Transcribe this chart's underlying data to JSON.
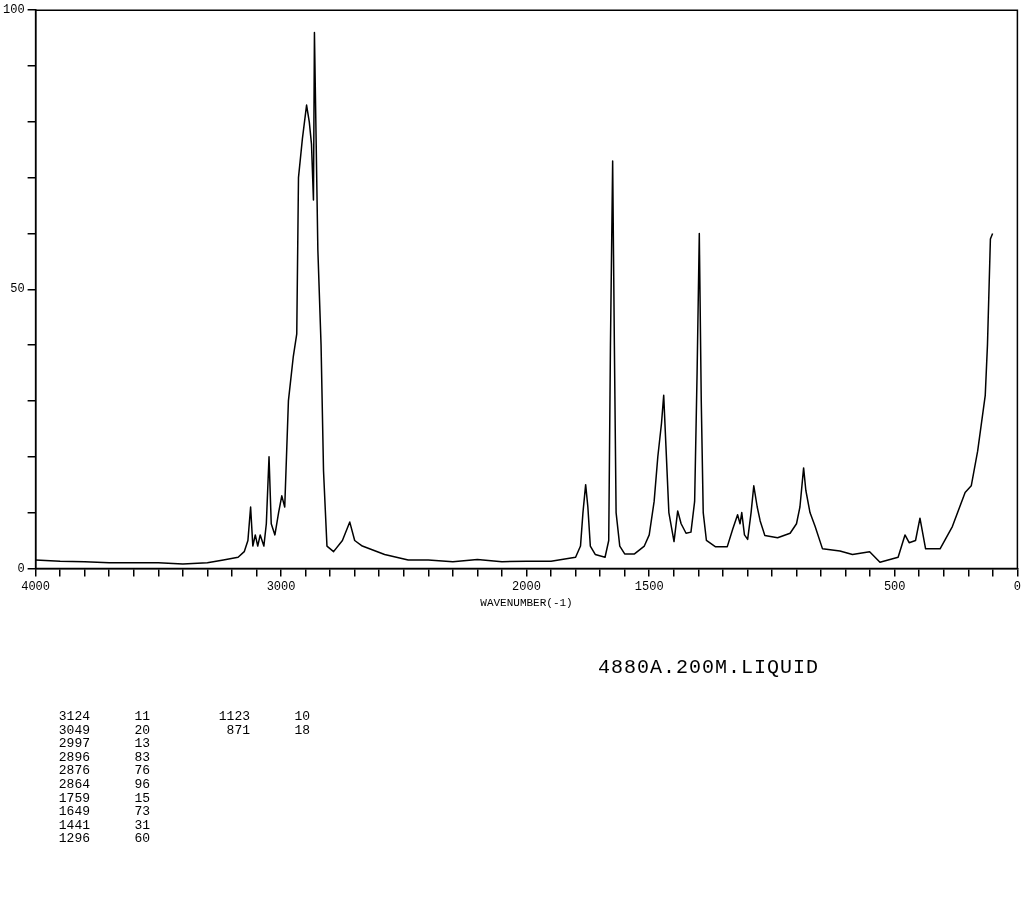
{
  "chart_data": {
    "type": "line",
    "xlabel": "WAVENUMBER(-1)",
    "x": [
      4000,
      3900,
      3800,
      3700,
      3600,
      3500,
      3400,
      3300,
      3235,
      3175,
      3150,
      3135,
      3124,
      3115,
      3105,
      3095,
      3085,
      3070,
      3060,
      3049,
      3040,
      3025,
      3010,
      2997,
      2985,
      2970,
      2950,
      2936,
      2929,
      2913,
      2896,
      2885,
      2876,
      2868,
      2864,
      2850,
      2837,
      2827,
      2813,
      2786,
      2750,
      2720,
      2700,
      2669,
      2578,
      2482,
      2400,
      2300,
      2200,
      2100,
      2000,
      1900,
      1800,
      1780,
      1770,
      1759,
      1750,
      1740,
      1720,
      1680,
      1665,
      1658,
      1649,
      1642,
      1635,
      1620,
      1600,
      1560,
      1520,
      1500,
      1480,
      1465,
      1450,
      1441,
      1432,
      1420,
      1399,
      1384,
      1370,
      1350,
      1330,
      1315,
      1305,
      1296,
      1288,
      1280,
      1267,
      1231,
      1182,
      1160,
      1140,
      1130,
      1123,
      1112,
      1099,
      1085,
      1074,
      1060,
      1048,
      1029,
      977,
      926,
      900,
      886,
      871,
      862,
      845,
      824,
      794,
      723,
      672,
      602,
      560,
      486,
      458,
      441,
      415,
      397,
      374,
      315,
      265,
      213,
      188,
      162,
      131,
      122,
      110,
      101
    ],
    "values": [
      1.5,
      1.3,
      1.2,
      1.0,
      1.0,
      1.0,
      0.8,
      1.0,
      1.5,
      2,
      3,
      5,
      11,
      4,
      6,
      4,
      6,
      4,
      8,
      20,
      8,
      6,
      10,
      13,
      11,
      30,
      38,
      42,
      70,
      77,
      83,
      80,
      76,
      66,
      96,
      57,
      40,
      17.5,
      4,
      3,
      5,
      8.3,
      5,
      4,
      2.5,
      1.5,
      1.5,
      1.2,
      1.6,
      1.2,
      1.3,
      1.3,
      2,
      4,
      10,
      15,
      11,
      4,
      2.5,
      2,
      5,
      40,
      73,
      40,
      10,
      4,
      2.6,
      2.6,
      4,
      6,
      12,
      20,
      26,
      31,
      22,
      10,
      4.8,
      10.3,
      8,
      6.3,
      6.5,
      12,
      35,
      60,
      30,
      10,
      5,
      3.9,
      3.9,
      7,
      9.6,
      8,
      10,
      6,
      5.2,
      10,
      14.8,
      11,
      8.5,
      5.9,
      5.5,
      6.3,
      8,
      11,
      18,
      14,
      10,
      7.5,
      3.5,
      3.1,
      2.5,
      3,
      1.1,
      2,
      6,
      4.6,
      5,
      9,
      3.5,
      3.5,
      7.5,
      13.6,
      14.8,
      21,
      31,
      40,
      59,
      60
    ],
    "color": "#000000",
    "xlim": [
      4000,
      0
    ],
    "xticks": [
      4000,
      {
        "value": 3900,
        "label": null
      },
      {
        "value": 3800,
        "label": null
      },
      {
        "value": 3700,
        "label": null
      },
      {
        "value": 3600,
        "label": null
      },
      {
        "value": 3500,
        "label": null
      },
      {
        "value": 3400,
        "label": null
      },
      {
        "value": 3300,
        "label": null
      },
      {
        "value": 3200,
        "label": null
      },
      {
        "value": 3100,
        "label": null
      },
      3000,
      {
        "value": 2900,
        "label": null
      },
      {
        "value": 2800,
        "label": null
      },
      {
        "value": 2700,
        "label": null
      },
      {
        "value": 2600,
        "label": null
      },
      {
        "value": 2500,
        "label": null
      },
      {
        "value": 2400,
        "label": null
      },
      {
        "value": 2300,
        "label": null
      },
      {
        "value": 2200,
        "label": null
      },
      {
        "value": 2100,
        "label": null
      },
      2000,
      {
        "value": 1900,
        "label": null
      },
      {
        "value": 1800,
        "label": null
      },
      {
        "value": 1700,
        "label": null
      },
      {
        "value": 1600,
        "label": null
      },
      1500,
      {
        "value": 1400,
        "label": null
      },
      {
        "value": 1300,
        "label": null
      },
      {
        "value": 1200,
        "label": null
      },
      {
        "value": 1100,
        "label": null
      },
      {
        "value": 1000,
        "label": null
      },
      {
        "value": 900,
        "label": null
      },
      {
        "value": 800,
        "label": null
      },
      {
        "value": 700,
        "label": null
      },
      {
        "value": 600,
        "label": null
      },
      500,
      {
        "value": 400,
        "label": null
      },
      {
        "value": 300,
        "label": null
      },
      {
        "value": 200,
        "label": null
      },
      {
        "value": 100,
        "label": null
      },
      0
    ],
    "ylim": [
      0,
      100
    ],
    "yticks": [
      0,
      {
        "value": 10,
        "label": null
      },
      {
        "value": 20,
        "label": null
      },
      {
        "value": 30,
        "label": null
      },
      {
        "value": 40,
        "label": null
      },
      50,
      {
        "value": 60,
        "label": null
      },
      {
        "value": 70,
        "label": null
      },
      {
        "value": 80,
        "label": null
      },
      {
        "value": 90,
        "label": null
      },
      100
    ],
    "grid": false,
    "legend": false,
    "marker": "none",
    "line_style": "solid",
    "annotations": [
      "4880A.200M.LIQUID",
      "3124 11",
      "3049 20",
      "2997 13",
      "2896 83",
      "2876 76",
      "2864 96",
      "1759 15",
      "1649 73",
      "1441 31",
      "1296 60",
      "1123 10",
      "871 18"
    ]
  }
}
